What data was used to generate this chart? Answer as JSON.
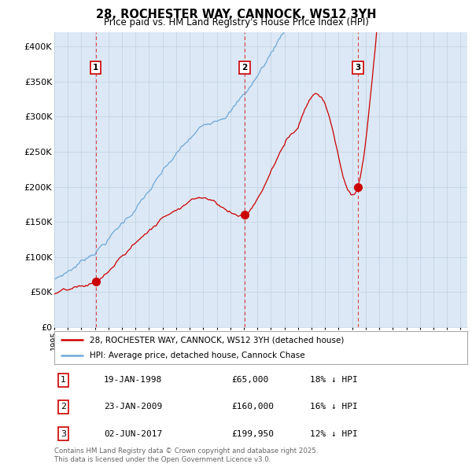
{
  "title": "28, ROCHESTER WAY, CANNOCK, WS12 3YH",
  "subtitle": "Price paid vs. HM Land Registry's House Price Index (HPI)",
  "ylabel_ticks": [
    "£0",
    "£50K",
    "£100K",
    "£150K",
    "£200K",
    "£250K",
    "£300K",
    "£350K",
    "£400K"
  ],
  "ytick_vals": [
    0,
    50000,
    100000,
    150000,
    200000,
    250000,
    300000,
    350000,
    400000
  ],
  "ylim": [
    0,
    420000
  ],
  "xlim_start": 1995.0,
  "xlim_end": 2025.5,
  "sale_dates": [
    1998.055,
    2009.055,
    2017.42
  ],
  "sale_prices": [
    65000,
    160000,
    199950
  ],
  "sale_labels": [
    "1",
    "2",
    "3"
  ],
  "red_color": "#cc0000",
  "blue_color": "#6fa8d6",
  "vline_color": "#dd4444",
  "chart_bg": "#dce8f5",
  "legend_label_red": "28, ROCHESTER WAY, CANNOCK, WS12 3YH (detached house)",
  "legend_label_blue": "HPI: Average price, detached house, Cannock Chase",
  "table_rows": [
    {
      "num": "1",
      "date": "19-JAN-1998",
      "price": "£65,000",
      "hpi": "18% ↓ HPI"
    },
    {
      "num": "2",
      "date": "23-JAN-2009",
      "price": "£160,000",
      "hpi": "16% ↓ HPI"
    },
    {
      "num": "3",
      "date": "02-JUN-2017",
      "price": "£199,950",
      "hpi": "12% ↓ HPI"
    }
  ],
  "footnote": "Contains HM Land Registry data © Crown copyright and database right 2025.\nThis data is licensed under the Open Government Licence v3.0.",
  "background_color": "#ffffff",
  "grid_color": "#c0d0e0"
}
